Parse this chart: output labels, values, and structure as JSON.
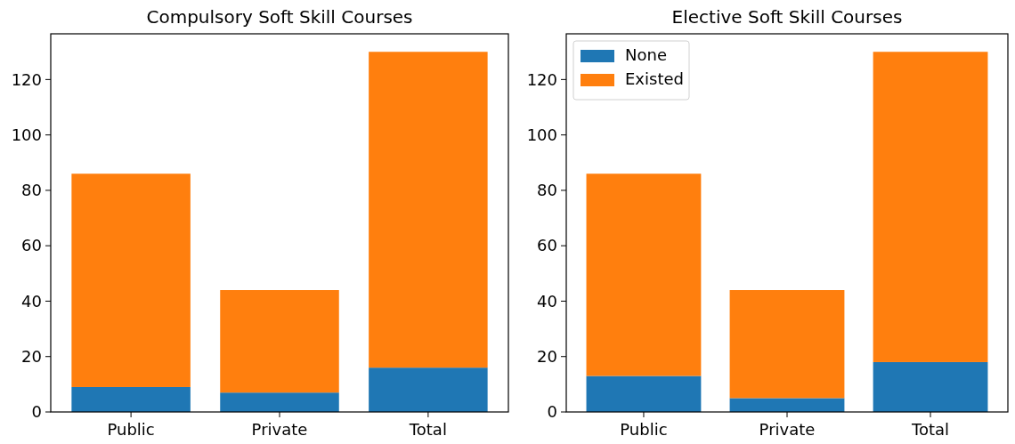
{
  "chart_data": [
    {
      "type": "bar",
      "title": "Compulsory Soft Skill Courses",
      "categories": [
        "Public",
        "Private",
        "Total"
      ],
      "stacked": true,
      "ylim": [
        0,
        136.5
      ],
      "yticks": [
        0,
        20,
        40,
        60,
        80,
        100,
        120
      ],
      "legend": false,
      "series": [
        {
          "color": "#1f77b4",
          "values": [
            9,
            7,
            16
          ]
        },
        {
          "color": "#ff7f0e",
          "values": [
            77,
            37,
            114
          ]
        }
      ]
    },
    {
      "type": "bar",
      "title": "Elective Soft Skill Courses",
      "categories": [
        "Public",
        "Private",
        "Total"
      ],
      "stacked": true,
      "ylim": [
        0,
        136.5
      ],
      "yticks": [
        0,
        20,
        40,
        60,
        80,
        100,
        120
      ],
      "legend": "top left",
      "series": [
        {
          "name": "None",
          "color": "#1f77b4",
          "values": [
            13,
            5,
            18
          ]
        },
        {
          "name": "Existed",
          "color": "#ff7f0e",
          "values": [
            73,
            39,
            112
          ]
        }
      ]
    }
  ]
}
